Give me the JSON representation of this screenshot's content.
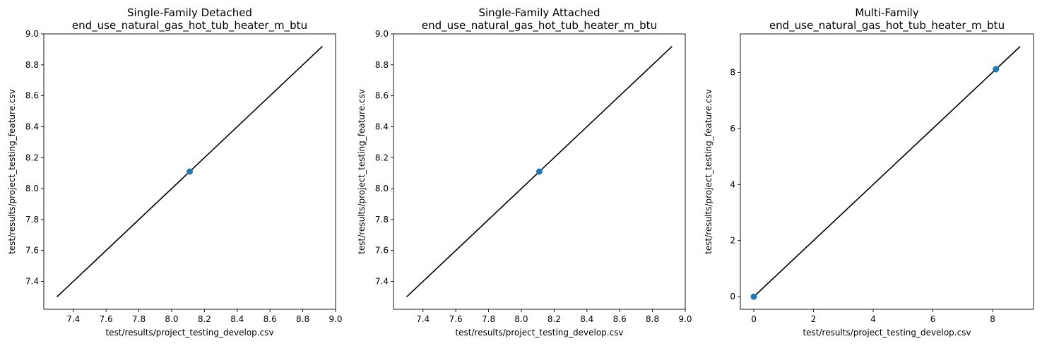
{
  "chart_data": [
    {
      "type": "scatter",
      "title": "Single-Family Detached\nend_use_natural_gas_hot_tub_heater_m_btu",
      "title_lines": [
        "Single-Family Detached",
        "end_use_natural_gas_hot_tub_heater_m_btu"
      ],
      "xlabel": "test/results/project_testing_develop.csv",
      "ylabel": "test/results/project_testing_feature.csv",
      "xlim": [
        7.22,
        9.0
      ],
      "ylim": [
        7.22,
        9.0
      ],
      "xticks": [
        7.4,
        7.6,
        7.8,
        8.0,
        8.2,
        8.4,
        8.6,
        8.8,
        9.0
      ],
      "xtick_labels": [
        "7.4",
        "7.6",
        "7.8",
        "8.0",
        "8.2",
        "8.4",
        "8.6",
        "8.8",
        "9.0"
      ],
      "yticks": [
        7.4,
        7.6,
        7.8,
        8.0,
        8.2,
        8.4,
        8.6,
        8.8,
        9.0
      ],
      "ytick_labels": [
        "7.4",
        "7.6",
        "7.8",
        "8.0",
        "8.2",
        "8.4",
        "8.6",
        "8.8",
        "9.0"
      ],
      "points": [
        {
          "x": 8.11,
          "y": 8.11
        }
      ],
      "reference_line": {
        "x": [
          7.3,
          8.92
        ],
        "y": [
          7.3,
          8.92
        ]
      },
      "grid": false,
      "colors": {
        "points": "#1f77b4",
        "line": "#000000"
      }
    },
    {
      "type": "scatter",
      "title": "Single-Family Attached\nend_use_natural_gas_hot_tub_heater_m_btu",
      "title_lines": [
        "Single-Family Attached",
        "end_use_natural_gas_hot_tub_heater_m_btu"
      ],
      "xlabel": "test/results/project_testing_develop.csv",
      "ylabel": "test/results/project_testing_feature.csv",
      "xlim": [
        7.22,
        9.0
      ],
      "ylim": [
        7.22,
        9.0
      ],
      "xticks": [
        7.4,
        7.6,
        7.8,
        8.0,
        8.2,
        8.4,
        8.6,
        8.8,
        9.0
      ],
      "xtick_labels": [
        "7.4",
        "7.6",
        "7.8",
        "8.0",
        "8.2",
        "8.4",
        "8.6",
        "8.8",
        "9.0"
      ],
      "yticks": [
        7.4,
        7.6,
        7.8,
        8.0,
        8.2,
        8.4,
        8.6,
        8.8,
        9.0
      ],
      "ytick_labels": [
        "7.4",
        "7.6",
        "7.8",
        "8.0",
        "8.2",
        "8.4",
        "8.6",
        "8.8",
        "9.0"
      ],
      "points": [
        {
          "x": 8.11,
          "y": 8.11
        }
      ],
      "reference_line": {
        "x": [
          7.3,
          8.92
        ],
        "y": [
          7.3,
          8.92
        ]
      },
      "grid": false,
      "colors": {
        "points": "#1f77b4",
        "line": "#000000"
      }
    },
    {
      "type": "scatter",
      "title": "Multi-Family\nend_use_natural_gas_hot_tub_heater_m_btu",
      "title_lines": [
        "Multi-Family",
        "end_use_natural_gas_hot_tub_heater_m_btu"
      ],
      "xlabel": "test/results/project_testing_develop.csv",
      "ylabel": "test/results/project_testing_feature.csv",
      "xlim": [
        -0.45,
        9.37
      ],
      "ylim": [
        -0.45,
        9.37
      ],
      "xticks": [
        0,
        2,
        4,
        6,
        8
      ],
      "xtick_labels": [
        "0",
        "2",
        "4",
        "6",
        "8"
      ],
      "yticks": [
        0,
        2,
        4,
        6,
        8
      ],
      "ytick_labels": [
        "0",
        "2",
        "4",
        "6",
        "8"
      ],
      "points": [
        {
          "x": 0,
          "y": 0
        },
        {
          "x": 8.11,
          "y": 8.11
        }
      ],
      "reference_line": {
        "x": [
          0,
          8.92
        ],
        "y": [
          0,
          8.92
        ]
      },
      "grid": false,
      "colors": {
        "points": "#1f77b4",
        "line": "#000000"
      }
    }
  ]
}
